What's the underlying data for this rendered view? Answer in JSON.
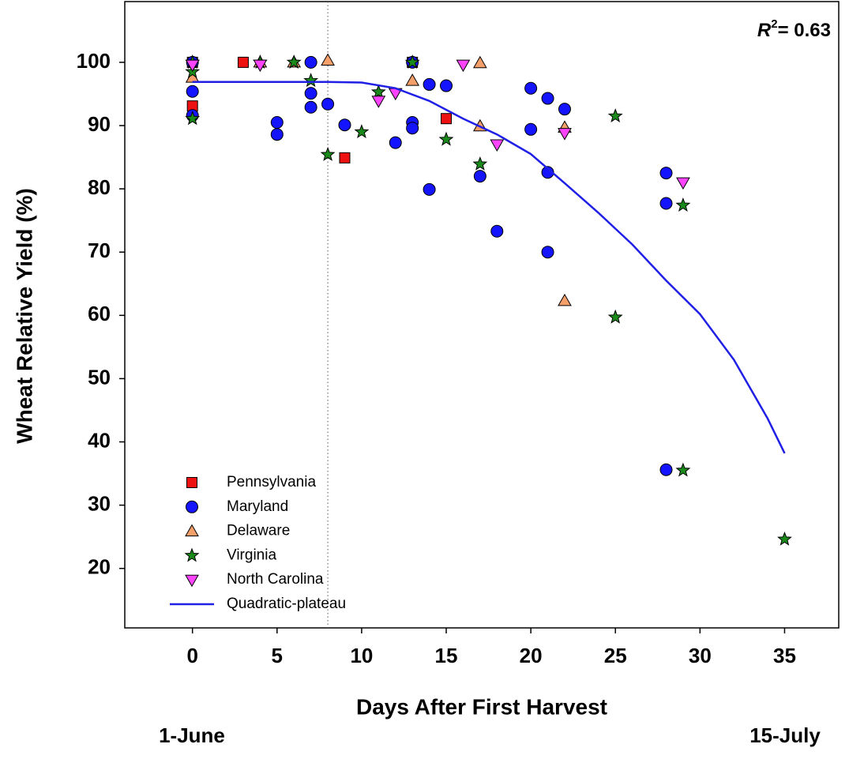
{
  "chart_data": {
    "type": "scatter",
    "x_label": "Days After First Harvest",
    "y_label": "Wheat Relative Yield (%)",
    "x_sublabels": [
      "1-June",
      "15-July"
    ],
    "annotation": {
      "symbol": "R",
      "superscript": "2",
      "text": "= 0.63"
    },
    "xlim": [
      -4,
      38.2
    ],
    "ylim": [
      10.6,
      109.6
    ],
    "xticks": [
      0,
      5,
      10,
      15,
      20,
      25,
      30,
      35
    ],
    "yticks": [
      20,
      30,
      40,
      50,
      60,
      70,
      80,
      90,
      100
    ],
    "vline": 8,
    "legend": "lower left",
    "series": [
      {
        "name": "Pennsylvania",
        "color": "#ee1111",
        "marker": "square",
        "x": [
          0,
          0,
          3,
          9,
          13,
          15
        ],
        "values": [
          100,
          93.1,
          100,
          84.9,
          100,
          91.1
        ]
      },
      {
        "name": "Maryland",
        "color": "#1414ff",
        "marker": "circle",
        "x": [
          0,
          0,
          0,
          5,
          5,
          7,
          7,
          7,
          8,
          9,
          12,
          13,
          13,
          13,
          14,
          15,
          14,
          17,
          18,
          20,
          20,
          21,
          22,
          21,
          21,
          28,
          28,
          28
        ],
        "values": [
          100,
          95.4,
          91.6,
          90.5,
          88.6,
          100,
          95.1,
          92.9,
          93.4,
          90.1,
          87.3,
          100,
          90.5,
          89.6,
          96.5,
          96.3,
          79.9,
          82.0,
          73.3,
          95.9,
          89.4,
          94.3,
          92.6,
          82.6,
          70.0,
          82.5,
          77.7,
          35.6
        ]
      },
      {
        "name": "Delaware",
        "color": "#f5a06a",
        "marker": "triangle",
        "x": [
          0,
          4,
          6,
          8,
          13,
          17,
          17,
          22,
          22
        ],
        "values": [
          97.6,
          100,
          100,
          100.3,
          97.1,
          99.9,
          89.9,
          89.7,
          62.3
        ]
      },
      {
        "name": "Virginia",
        "color": "#1a8a1a",
        "marker": "star",
        "x": [
          0,
          0,
          0,
          4,
          6,
          7,
          8,
          10,
          11,
          13,
          15,
          17,
          25,
          25,
          29,
          29,
          35
        ],
        "values": [
          100,
          98.5,
          91.1,
          100,
          100,
          97.1,
          85.4,
          89.0,
          95.3,
          100,
          87.8,
          83.9,
          91.5,
          59.7,
          77.4,
          35.5,
          24.6
        ]
      },
      {
        "name": "North Carolina",
        "color": "#ff44ff",
        "marker": "triangle-down",
        "x": [
          0,
          4,
          11,
          12,
          16,
          18,
          22,
          29
        ],
        "values": [
          99.6,
          99.6,
          93.9,
          95.1,
          99.6,
          87.0,
          88.8,
          81.0
        ]
      },
      {
        "name": "Quadratic-plateau",
        "color": "#1f1fe6",
        "marker": "line",
        "x": [
          0,
          8,
          10,
          12,
          14,
          16,
          18,
          20,
          22,
          24,
          26,
          28,
          30,
          32,
          34,
          35
        ],
        "values": [
          96.9,
          96.9,
          96.8,
          95.9,
          93.9,
          91.1,
          88.6,
          85.5,
          80.9,
          76.2,
          71.2,
          65.5,
          60.2,
          53.0,
          43.7,
          38.2
        ]
      }
    ]
  }
}
